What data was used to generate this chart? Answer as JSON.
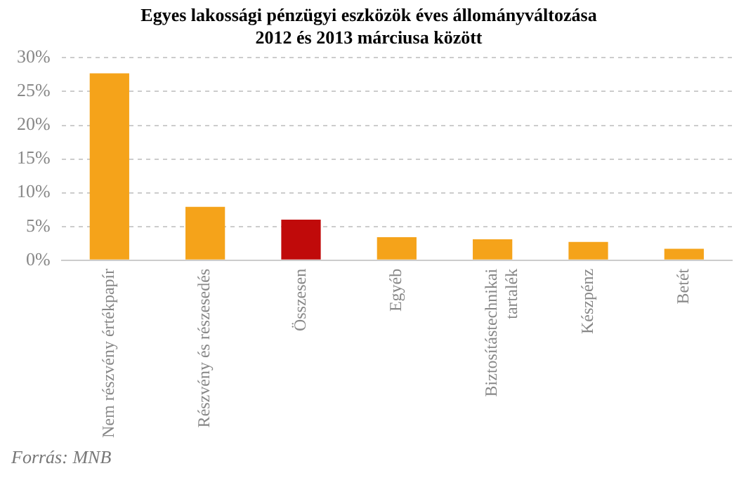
{
  "chart_data": {
    "type": "bar",
    "title": "Egyes lakossági pénzügyi eszközök éves állományváltozása\n2012 és 2013 márciusa között",
    "categories": [
      "Nem részvény értékpapír",
      "Részvény és részesedés",
      "Összesen",
      "Egyéb",
      "Biztosítástechnikai tartalék",
      "Készpénz",
      "Betét"
    ],
    "values": [
      27.7,
      7.9,
      6.0,
      3.4,
      3.1,
      2.7,
      1.7
    ],
    "colors": [
      "#f5a31a",
      "#f5a31a",
      "#c00a0a",
      "#f5a31a",
      "#f5a31a",
      "#f5a31a",
      "#f5a31a"
    ],
    "ylim": [
      0,
      30
    ],
    "yticks": [
      {
        "value": 0,
        "label": "0%"
      },
      {
        "value": 5,
        "label": "5%"
      },
      {
        "value": 10,
        "label": "10%"
      },
      {
        "value": 15,
        "label": "15%"
      },
      {
        "value": 20,
        "label": "20%"
      },
      {
        "value": 25,
        "label": "25%"
      },
      {
        "value": 30,
        "label": "30%"
      }
    ],
    "grid": "y",
    "legend": false,
    "annotations": [
      "Forrás: MNB"
    ]
  }
}
